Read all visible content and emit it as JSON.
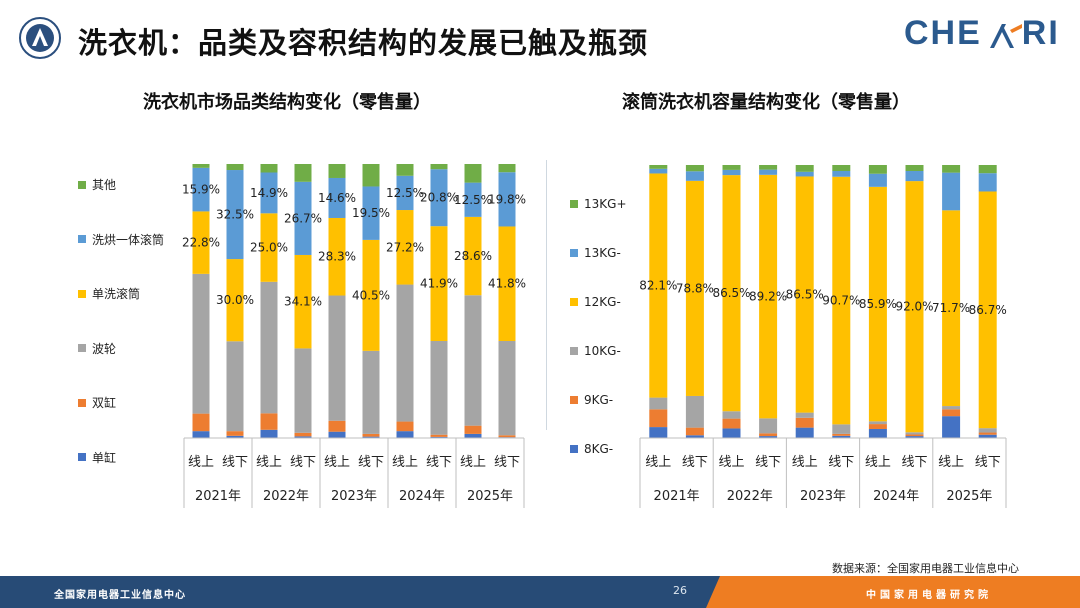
{
  "header": {
    "title": "洗衣机：品类及容积结构的发展已触及瓶颈",
    "brand": "CHE",
    "brand_tail": "RI"
  },
  "source": "数据来源：全国家用电器工业信息中心",
  "footer": {
    "left_text": "全国家用电器工业信息中心",
    "page": "26",
    "right_text": "中国家用电器研究院"
  },
  "colors": {
    "blue_dark": "#4472c4",
    "orange": "#ed7d31",
    "gray": "#a5a5a5",
    "yellow": "#ffc000",
    "blue_light": "#5b9bd5",
    "green": "#70ad47"
  },
  "chart_data": [
    {
      "type": "stacked-bar-100",
      "title": "洗衣机市场品类结构变化（零售量）",
      "categories": [
        "线上",
        "线下",
        "线上",
        "线下",
        "线上",
        "线下",
        "线上",
        "线下",
        "线上",
        "线下"
      ],
      "groups": [
        "2021年",
        "2022年",
        "2023年",
        "2024年",
        "2025年"
      ],
      "series": [
        {
          "name": "单缸",
          "color": "#4472c4",
          "values": [
            2.5,
            0.8,
            3.0,
            0.6,
            2.3,
            0.5,
            2.5,
            0.4,
            1.5,
            0.3
          ]
        },
        {
          "name": "双缸",
          "color": "#ed7d31",
          "values": [
            6.4,
            1.7,
            6.0,
            1.3,
            4.0,
            1.0,
            3.5,
            0.8,
            3.0,
            0.7
          ]
        },
        {
          "name": "波轮",
          "color": "#a5a5a5",
          "values": [
            51.0,
            32.8,
            48.0,
            30.8,
            45.7,
            30.3,
            50.0,
            34.2,
            47.6,
            34.4
          ]
        },
        {
          "name": "单洗滚筒",
          "color": "#ffc000",
          "values": [
            22.8,
            30.0,
            25.0,
            34.1,
            28.3,
            40.5,
            27.2,
            41.9,
            28.6,
            41.8
          ]
        },
        {
          "name": "洗烘一体滚筒",
          "color": "#5b9bd5",
          "values": [
            15.9,
            32.5,
            14.9,
            26.7,
            14.6,
            19.5,
            12.5,
            20.8,
            12.5,
            19.8
          ]
        },
        {
          "name": "其他",
          "color": "#70ad47",
          "values": [
            1.4,
            2.2,
            3.1,
            6.5,
            5.1,
            8.2,
            4.3,
            1.9,
            6.8,
            3.0
          ]
        }
      ],
      "data_labels": [
        {
          "series": "洗烘一体滚筒",
          "labels": [
            "15.9%",
            "32.5%",
            "14.9%",
            "26.7%",
            "14.6%",
            "19.5%",
            "12.5%",
            "20.8%",
            "12.5%",
            "19.8%"
          ]
        },
        {
          "series": "单洗滚筒",
          "labels": [
            "22.8%",
            "30.0%",
            "25.0%",
            "34.1%",
            "28.3%",
            "40.5%",
            "27.2%",
            "41.9%",
            "28.6%",
            "41.8%"
          ]
        }
      ],
      "ylim": [
        0,
        100
      ],
      "legend_order": [
        "其他",
        "洗烘一体滚筒",
        "单洗滚筒",
        "波轮",
        "双缸",
        "单缸"
      ],
      "legend_position": "left"
    },
    {
      "type": "stacked-bar-100",
      "title": "滚筒洗衣机容量结构变化（零售量）",
      "categories": [
        "线上",
        "线下",
        "线上",
        "线下",
        "线上",
        "线下",
        "线上",
        "线下",
        "线上",
        "线下"
      ],
      "groups": [
        "2021年",
        "2022年",
        "2023年",
        "2024年",
        "2025年"
      ],
      "series": [
        {
          "name": "8KG-",
          "color": "#4472c4",
          "values": [
            4.0,
            1.0,
            3.5,
            0.7,
            3.8,
            0.8,
            3.3,
            0.7,
            8.0,
            1.2
          ]
        },
        {
          "name": "9KG-",
          "color": "#ed7d31",
          "values": [
            6.5,
            2.8,
            3.6,
            1.0,
            3.6,
            0.7,
            1.8,
            0.6,
            2.5,
            0.8
          ]
        },
        {
          "name": "10KG-",
          "color": "#a5a5a5",
          "values": [
            4.3,
            11.6,
            2.7,
            5.5,
            1.9,
            3.5,
            1.0,
            0.8,
            1.2,
            1.6
          ]
        },
        {
          "name": "12KG-",
          "color": "#ffc000",
          "values": [
            82.1,
            78.8,
            86.5,
            89.2,
            86.5,
            90.7,
            85.9,
            92.0,
            71.7,
            86.7
          ]
        },
        {
          "name": "13KG-",
          "color": "#5b9bd5",
          "values": [
            1.7,
            3.5,
            1.9,
            1.9,
            1.7,
            2.1,
            4.8,
            3.7,
            13.8,
            6.7
          ]
        },
        {
          "name": "13KG+",
          "color": "#70ad47",
          "values": [
            1.4,
            2.3,
            1.8,
            1.7,
            2.5,
            2.2,
            3.2,
            2.2,
            2.8,
            3.0
          ]
        }
      ],
      "data_labels": [
        {
          "series": "12KG-",
          "labels": [
            "82.1%",
            "78.8%",
            "86.5%",
            "89.2%",
            "86.5%",
            "90.7%",
            "85.9%",
            "92.0%",
            "71.7%",
            "86.7%"
          ]
        }
      ],
      "ylim": [
        0,
        100
      ],
      "legend_order": [
        "13KG+",
        "13KG-",
        "12KG-",
        "10KG-",
        "9KG-",
        "8KG-"
      ],
      "legend_position": "left"
    }
  ]
}
